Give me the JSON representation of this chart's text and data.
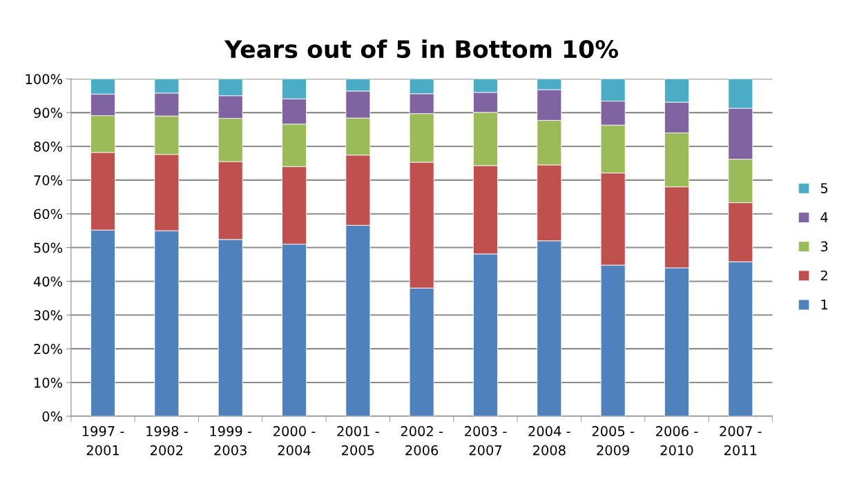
{
  "chart_data": {
    "type": "bar",
    "title": "Years out of 5 in Bottom 10%",
    "stacked": true,
    "categories": [
      "1997 -\n2001",
      "1998 -\n2002",
      "1999 -\n2003",
      "2000 -\n2004",
      "2001 -\n2005",
      "2002 -\n2006",
      "2003 -\n2007",
      "2004 -\n2008",
      "2005 -\n2009",
      "2006 -\n2010",
      "2007 -\n2011"
    ],
    "series": [
      {
        "name": "1",
        "color": "#4f81bd",
        "values": [
          55.2,
          55.0,
          52.4,
          51.0,
          56.6,
          38.0,
          48.1,
          52.0,
          44.8,
          44.0,
          45.8
        ]
      },
      {
        "name": "2",
        "color": "#c0504d",
        "values": [
          23.0,
          22.6,
          23.1,
          23.0,
          20.8,
          37.3,
          26.2,
          22.5,
          27.3,
          24.0,
          17.5
        ]
      },
      {
        "name": "3",
        "color": "#9bbb59",
        "values": [
          10.9,
          11.4,
          12.8,
          12.6,
          11.0,
          14.4,
          15.8,
          13.2,
          14.2,
          16.0,
          12.9
        ]
      },
      {
        "name": "4",
        "color": "#8064a2",
        "values": [
          6.4,
          6.8,
          6.7,
          7.5,
          8.0,
          5.9,
          5.9,
          9.1,
          7.1,
          9.1,
          15.1
        ]
      },
      {
        "name": "5",
        "color": "#4bacc6",
        "values": [
          4.5,
          4.2,
          5.0,
          5.9,
          3.6,
          4.4,
          4.0,
          3.2,
          6.6,
          6.9,
          8.7
        ]
      }
    ],
    "ylim": [
      0,
      100
    ],
    "yticks": [
      {
        "value": 0,
        "label": "0%"
      },
      {
        "value": 10,
        "label": "10%"
      },
      {
        "value": 20,
        "label": "20%"
      },
      {
        "value": 30,
        "label": "30%"
      },
      {
        "value": 40,
        "label": "40%"
      },
      {
        "value": 50,
        "label": "50%"
      },
      {
        "value": 60,
        "label": "60%"
      },
      {
        "value": 70,
        "label": "70%"
      },
      {
        "value": 80,
        "label": "80%"
      },
      {
        "value": 90,
        "label": "90%"
      },
      {
        "value": 100,
        "label": "100%"
      }
    ],
    "grid": "y",
    "legend": "right"
  }
}
